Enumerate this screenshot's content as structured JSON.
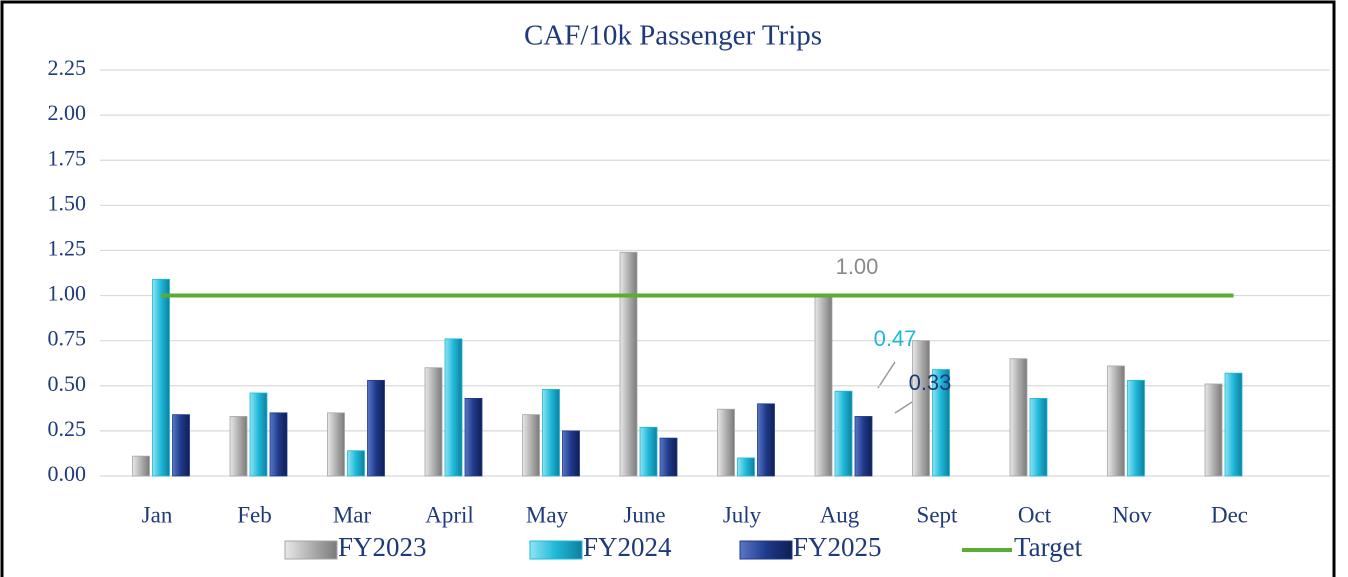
{
  "chart_data": {
    "type": "bar",
    "title": "CAF/10k Passenger Trips",
    "categories": [
      "Jan",
      "Feb",
      "Mar",
      "April",
      "May",
      "June",
      "July",
      "Aug",
      "Sept",
      "Oct",
      "Nov",
      "Dec"
    ],
    "series": [
      {
        "name": "FY2023",
        "color": "#a6a6a6",
        "values": [
          0.11,
          0.33,
          0.35,
          0.6,
          0.34,
          1.24,
          0.37,
          1.0,
          0.75,
          0.65,
          0.61,
          0.51
        ],
        "value_labels": [
          null,
          null,
          null,
          null,
          null,
          null,
          null,
          "1.00",
          null,
          null,
          null,
          null
        ]
      },
      {
        "name": "FY2024",
        "color": "#1fb8d8",
        "values": [
          1.09,
          0.46,
          0.14,
          0.76,
          0.48,
          0.27,
          0.1,
          0.47,
          0.59,
          0.43,
          0.53,
          0.57
        ],
        "value_labels": [
          null,
          null,
          null,
          null,
          null,
          null,
          null,
          "0.47",
          null,
          null,
          null,
          null
        ]
      },
      {
        "name": "FY2025",
        "color": "#1f3a8a",
        "values": [
          0.34,
          0.35,
          0.53,
          0.43,
          0.25,
          0.21,
          0.4,
          0.33,
          null,
          null,
          null,
          null
        ],
        "value_labels": [
          null,
          null,
          null,
          null,
          null,
          null,
          null,
          "0.33",
          null,
          null,
          null,
          null
        ]
      },
      {
        "name": "Target",
        "type": "line",
        "color": "#5aac32",
        "values": [
          1,
          1,
          1,
          1,
          1,
          1,
          1,
          1,
          1,
          1,
          1,
          1
        ]
      }
    ],
    "ylim": [
      0,
      2.25
    ],
    "yticks": [
      {
        "value": 0,
        "label": "0.00"
      },
      {
        "value": 0.25,
        "label": "0.25"
      },
      {
        "value": 0.5,
        "label": "0.50"
      },
      {
        "value": 0.75,
        "label": "0.75"
      },
      {
        "value": 1,
        "label": "1.00"
      },
      {
        "value": 1.25,
        "label": "1.25"
      },
      {
        "value": 1.5,
        "label": "1.50"
      },
      {
        "value": 1.75,
        "label": "1.75"
      },
      {
        "value": 2,
        "label": "2.00"
      },
      {
        "value": 2.25,
        "label": "2.25"
      }
    ],
    "grid": true,
    "legend": "bottom"
  }
}
